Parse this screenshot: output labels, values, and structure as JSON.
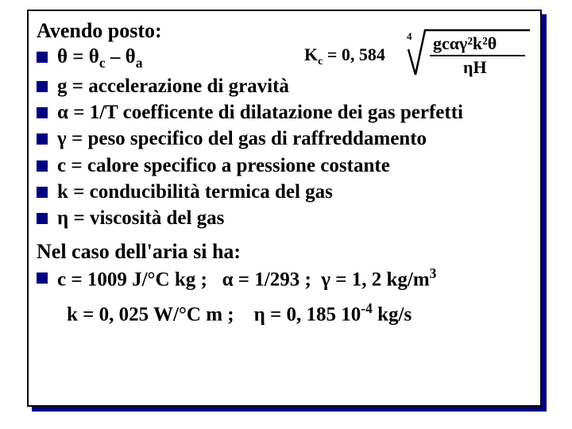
{
  "header": "Avendo posto:",
  "defs": [
    "θ = θ<span class='sub'>c</span> – θ<span class='sub'>a</span>",
    "g = accelerazione di gravità",
    "α = 1/T coefficente di dilatazione dei gas perfetti",
    "γ = peso specifico del gas di raffreddamento",
    "c = calore specifico a pressione costante",
    "k = conducibilità termica del gas",
    "η = viscosità del gas"
  ],
  "second_header": "Nel caso dell'aria si ha:",
  "air_line1": "c = 1009 J/°C kg ;&nbsp;&nbsp;&nbsp;α = 1/293 ;&nbsp;&nbsp;γ = 1, 2 kg/m<span class='sup'>3</span>",
  "air_line2": "k = 0, 025 W/°C m ;&nbsp;&nbsp;&nbsp;&nbsp;η = 0, 185 10<span class='sup'>-4</span> kg/s",
  "formula": {
    "left": "K<tspan baseline-shift='sub' font-size='14'>c</tspan> = 0, 584",
    "root_exponent": "4",
    "numerator": "gcαγ²k²θ",
    "denominator": "ηH"
  },
  "colors": {
    "text": "#000000",
    "bullet": "#000080",
    "shadow": "#000080",
    "border": "#000000",
    "bg": "#ffffff"
  }
}
